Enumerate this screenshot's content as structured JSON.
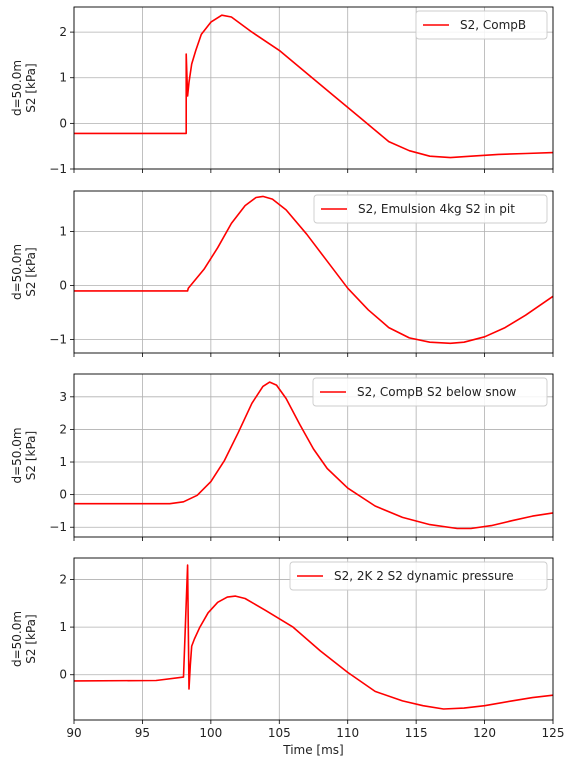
{
  "chart_data": [
    {
      "type": "line",
      "ylabel_top": "d=50.0m",
      "ylabel_bottom": "S2 [kPa]",
      "xlim": [
        90,
        125
      ],
      "ylim": [
        -1.0,
        2.55
      ],
      "yticks": [
        -1,
        0,
        1,
        2
      ],
      "grid": true,
      "legend_position": "top-right",
      "series": [
        {
          "name": "S2, CompB",
          "color": "#ff0000",
          "x": [
            90,
            98.2,
            98.2,
            98.3,
            98.4,
            98.6,
            98.9,
            99.3,
            100.0,
            100.8,
            101.5,
            103.0,
            105.0,
            107.0,
            109.0,
            111.0,
            113.0,
            114.5,
            116.0,
            117.5,
            119.0,
            121.0,
            123.0,
            125.0
          ],
          "y": [
            -0.22,
            -0.22,
            1.52,
            0.6,
            0.9,
            1.3,
            1.6,
            1.95,
            2.22,
            2.37,
            2.33,
            2.0,
            1.6,
            1.1,
            0.6,
            0.1,
            -0.4,
            -0.6,
            -0.72,
            -0.75,
            -0.72,
            -0.68,
            -0.66,
            -0.64
          ]
        }
      ]
    },
    {
      "type": "line",
      "ylabel_top": "d=50.0m",
      "ylabel_bottom": "S2 [kPa]",
      "xlim": [
        90,
        125
      ],
      "ylim": [
        -1.25,
        1.75
      ],
      "yticks": [
        -1,
        0,
        1
      ],
      "grid": true,
      "legend_position": "top-right",
      "series": [
        {
          "name": "S2, Emulsion 4kg S2 in pit",
          "color": "#ff0000",
          "x": [
            90,
            98.3,
            98.35,
            99.5,
            100.5,
            101.5,
            102.5,
            103.3,
            103.8,
            104.5,
            105.5,
            107.0,
            108.5,
            110.0,
            111.5,
            113.0,
            114.5,
            116.0,
            117.5,
            118.5,
            120.0,
            121.5,
            123.0,
            125.0
          ],
          "y": [
            -0.1,
            -0.1,
            -0.05,
            0.3,
            0.7,
            1.15,
            1.48,
            1.63,
            1.65,
            1.6,
            1.4,
            0.95,
            0.45,
            -0.05,
            -0.45,
            -0.78,
            -0.97,
            -1.05,
            -1.07,
            -1.05,
            -0.95,
            -0.78,
            -0.55,
            -0.2
          ]
        }
      ]
    },
    {
      "type": "line",
      "ylabel_top": "d=50.0m",
      "ylabel_bottom": "S2 [kPa]",
      "xlim": [
        90,
        125
      ],
      "ylim": [
        -1.3,
        3.7
      ],
      "yticks": [
        -1,
        0,
        1,
        2,
        3
      ],
      "grid": true,
      "legend_position": "top-right",
      "series": [
        {
          "name": "S2, CompB S2 below snow",
          "color": "#ff0000",
          "x": [
            90,
            97.0,
            98.0,
            99.0,
            100.0,
            101.0,
            102.0,
            103.0,
            103.8,
            104.3,
            104.8,
            105.5,
            106.5,
            107.5,
            108.5,
            110.0,
            112.0,
            114.0,
            116.0,
            118.0,
            119.0,
            120.5,
            122.0,
            123.5,
            125.0
          ],
          "y": [
            -0.28,
            -0.28,
            -0.22,
            -0.02,
            0.4,
            1.05,
            1.9,
            2.8,
            3.32,
            3.45,
            3.36,
            2.95,
            2.15,
            1.4,
            0.8,
            0.2,
            -0.35,
            -0.7,
            -0.92,
            -1.04,
            -1.04,
            -0.95,
            -0.8,
            -0.66,
            -0.56
          ]
        }
      ]
    },
    {
      "type": "line",
      "ylabel_top": "d=50.0m",
      "ylabel_bottom": "S2 [kPa]",
      "xlim": [
        90,
        125
      ],
      "ylim": [
        -0.95,
        2.45
      ],
      "yticks": [
        0,
        1,
        2
      ],
      "grid": true,
      "legend_position": "top-right",
      "xlabel": "Time [ms]",
      "xticks": [
        90,
        95,
        100,
        105,
        110,
        115,
        120,
        125
      ],
      "series": [
        {
          "name": "S2, 2K 2 S2 dynamic pressure",
          "color": "#ff0000",
          "x": [
            90,
            96.0,
            98.0,
            98.3,
            98.4,
            98.5,
            98.6,
            98.8,
            99.2,
            99.8,
            100.5,
            101.2,
            101.8,
            102.5,
            104.0,
            106.0,
            108.0,
            110.0,
            112.0,
            114.0,
            115.5,
            117.0,
            118.5,
            120.0,
            122.0,
            123.5,
            125.0
          ],
          "y": [
            -0.13,
            -0.12,
            -0.05,
            2.3,
            -0.3,
            0.2,
            0.6,
            0.75,
            1.0,
            1.3,
            1.52,
            1.63,
            1.65,
            1.6,
            1.35,
            1.0,
            0.5,
            0.05,
            -0.35,
            -0.55,
            -0.65,
            -0.72,
            -0.7,
            -0.65,
            -0.55,
            -0.48,
            -0.43
          ]
        }
      ]
    }
  ]
}
